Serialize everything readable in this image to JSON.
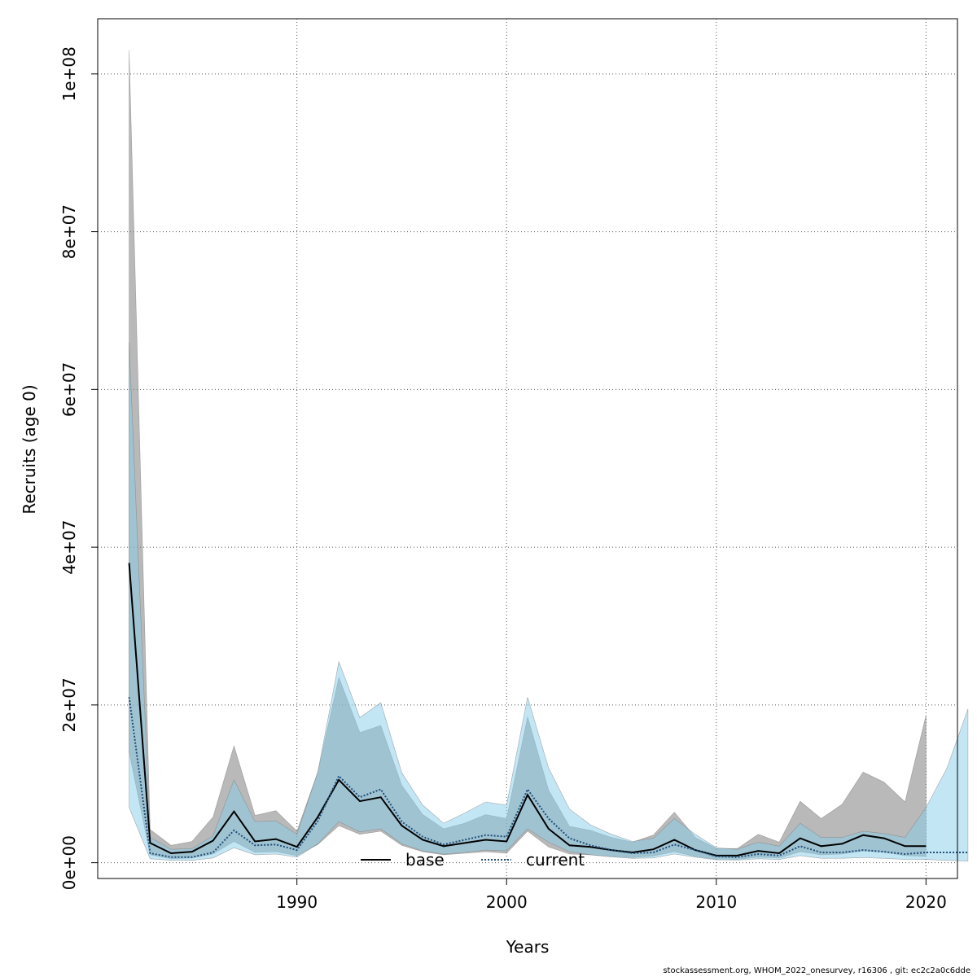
{
  "chart_data": {
    "type": "line",
    "xlabel": "Years",
    "ylabel": "Recruits (age 0)",
    "xlim": [
      1980.5,
      2021.5
    ],
    "ylim": [
      -2000000,
      107000000
    ],
    "x_ticks": [
      1990,
      2000,
      2010,
      2020
    ],
    "x_tick_labels": [
      "1990",
      "2000",
      "2010",
      "2020"
    ],
    "y_ticks": [
      0,
      20000000,
      40000000,
      60000000,
      80000000,
      100000000
    ],
    "y_tick_labels": [
      "0e+00",
      "2e+07",
      "4e+07",
      "6e+07",
      "8e+07",
      "1e+08"
    ],
    "grid": true,
    "legend_position": "bottom-center",
    "series": [
      {
        "name": "base",
        "line_style": "solid",
        "line_color": "#000000",
        "band_color": "#808080",
        "x": [
          1982,
          1983,
          1984,
          1985,
          1986,
          1987,
          1988,
          1989,
          1990,
          1991,
          1992,
          1993,
          1994,
          1995,
          1996,
          1997,
          1998,
          1999,
          2000,
          2001,
          2002,
          2003,
          2004,
          2005,
          2006,
          2007,
          2008,
          2009,
          2010,
          2011,
          2012,
          2013,
          2014,
          2015,
          2016,
          2017,
          2018,
          2019,
          2020
        ],
        "values": [
          38000000,
          2500000,
          1200000,
          1400000,
          2800000,
          6500000,
          2700000,
          3000000,
          2000000,
          5800000,
          10500000,
          7800000,
          8300000,
          4700000,
          2900000,
          2100000,
          2500000,
          2900000,
          2700000,
          8600000,
          4300000,
          2200000,
          2000000,
          1600000,
          1300000,
          1700000,
          2900000,
          1600000,
          900000,
          900000,
          1500000,
          1200000,
          3100000,
          2100000,
          2400000,
          3500000,
          3100000,
          2100000,
          2100000
        ],
        "lower": [
          14000000,
          1000000,
          500000,
          600000,
          1100000,
          2700000,
          1300000,
          1400000,
          900000,
          2300000,
          4700000,
          3600000,
          4000000,
          2200000,
          1400000,
          1000000,
          1200000,
          1400000,
          1200000,
          4000000,
          2000000,
          1100000,
          1000000,
          800000,
          650000,
          850000,
          1400000,
          800000,
          450000,
          420000,
          700000,
          580000,
          1400000,
          1000000,
          1100000,
          1500000,
          1300000,
          900000,
          800000
        ],
        "upper": [
          103000000,
          4200000,
          2200000,
          2700000,
          5800000,
          14800000,
          6000000,
          6600000,
          4000000,
          11500000,
          23500000,
          16500000,
          17400000,
          9800000,
          6100000,
          4300000,
          5000000,
          6100000,
          5600000,
          18500000,
          9200000,
          4600000,
          4100000,
          3200000,
          2600000,
          3500000,
          6400000,
          3200000,
          1800000,
          1800000,
          3600000,
          2600000,
          7800000,
          5600000,
          7400000,
          11500000,
          10200000,
          7700000,
          18700000
        ]
      },
      {
        "name": "current",
        "line_style": "dotted",
        "line_color": "#1f4e79",
        "band_color": "#87ceeb",
        "x": [
          1982,
          1983,
          1984,
          1985,
          1986,
          1987,
          1988,
          1989,
          1990,
          1991,
          1992,
          1993,
          1994,
          1995,
          1996,
          1997,
          1998,
          1999,
          2000,
          2001,
          2002,
          2003,
          2004,
          2005,
          2006,
          2007,
          2008,
          2009,
          2010,
          2011,
          2012,
          2013,
          2014,
          2015,
          2016,
          2017,
          2018,
          2019,
          2020,
          2021,
          2022
        ],
        "values": [
          21000000,
          1200000,
          700000,
          700000,
          1300000,
          4100000,
          2200000,
          2300000,
          1600000,
          5300000,
          11000000,
          8300000,
          9300000,
          5200000,
          3300000,
          2300000,
          2900000,
          3500000,
          3300000,
          9300000,
          5600000,
          3100000,
          2200000,
          1600000,
          1200000,
          1300000,
          2300000,
          1600000,
          800000,
          700000,
          1100000,
          900000,
          2100000,
          1300000,
          1300000,
          1600000,
          1400000,
          1100000,
          1300000,
          1300000,
          1300000
        ],
        "lower": [
          7000000,
          500000,
          300000,
          300000,
          600000,
          1900000,
          1000000,
          1100000,
          700000,
          2400000,
          5200000,
          3900000,
          4300000,
          2400000,
          1500000,
          1100000,
          1300000,
          1600000,
          1500000,
          4300000,
          2600000,
          1400000,
          1000000,
          750000,
          550000,
          600000,
          1100000,
          700000,
          360000,
          320000,
          500000,
          400000,
          900000,
          560000,
          560000,
          650000,
          550000,
          420000,
          400000,
          300000,
          200000
        ],
        "upper": [
          66000000,
          3200000,
          1700000,
          1800000,
          3400000,
          10500000,
          5200000,
          5300000,
          3600000,
          11500000,
          25500000,
          18400000,
          20300000,
          11400000,
          7300000,
          5000000,
          6300000,
          7700000,
          7300000,
          21000000,
          12000000,
          6800000,
          4800000,
          3600000,
          2700000,
          3100000,
          5600000,
          3600000,
          1900000,
          1700000,
          2600000,
          2100000,
          5000000,
          3200000,
          3200000,
          4000000,
          3700000,
          3200000,
          7000000,
          12000000,
          19500000
        ]
      }
    ]
  },
  "footer": "stockassessment.org, WHOM_2022_onesurvey, r16306 , git: ec2c2a0c6dde"
}
